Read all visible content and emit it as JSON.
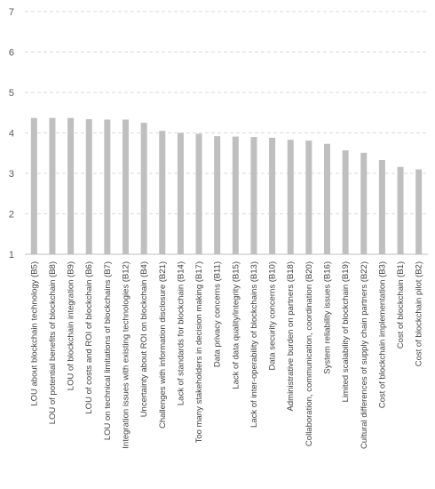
{
  "chart_data": {
    "type": "bar",
    "title": "",
    "xlabel": "",
    "ylabel": "",
    "ylim": [
      1,
      7
    ],
    "yticks": [
      1,
      2,
      3,
      4,
      5,
      6,
      7
    ],
    "grid": true,
    "legend": "none",
    "bar_color": "#bfbfbf",
    "categories": [
      "LOU about blockchain technology (B5)",
      "LOU of potential benefits of blockchain (B8)",
      "LOU of blockchain integration (B9)",
      "LOU of costs and ROI of blockchain (B6)",
      "LOU on technical limitations of blockchains (B7)",
      "Integration issues with existing technologies (B12)",
      "Uncertainty about ROI on blockchain (B4)",
      "Challenges with information disclosure (B21)",
      "Lack of standards for blockchain (B14)",
      "Too many stakeholders in decision making (B17)",
      "Data privacy concerns (B11)",
      "Lack of data quality/integrity (B15)",
      "Lack of inter-operability of blockchains (B13)",
      "Data security concerns (B10)",
      "Administrative burden on partners (B18)",
      "Collaboration, communication, coordination (B20)",
      "System reliability issues (B16)",
      "Limited scalability of blockchain (B19)",
      "Cultural differences of supply chain partners (B22)",
      "Cost of blockchain implementation (B3)",
      "Cost of blockchain (B1)",
      "Cost of blockchain pilot (B2)"
    ],
    "values": [
      4.37,
      4.37,
      4.37,
      4.34,
      4.33,
      4.33,
      4.25,
      4.05,
      4.0,
      3.98,
      3.92,
      3.91,
      3.9,
      3.88,
      3.83,
      3.81,
      3.73,
      3.57,
      3.51,
      3.33,
      3.16,
      3.1
    ]
  }
}
